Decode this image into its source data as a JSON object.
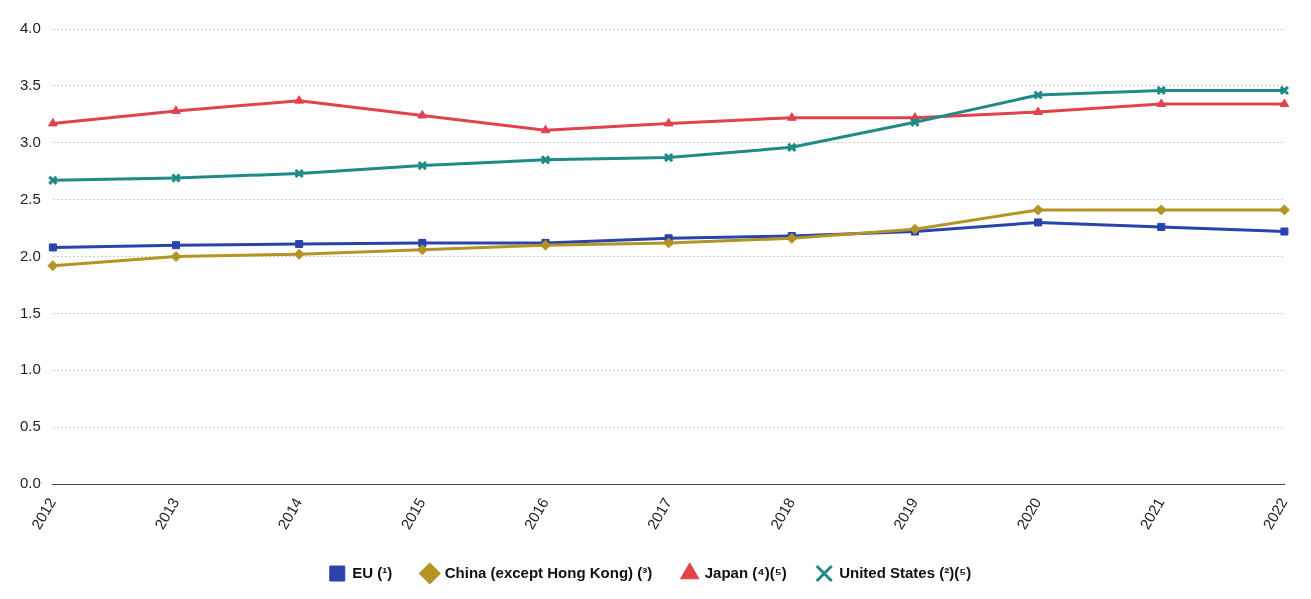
{
  "chart_data": {
    "type": "line",
    "categories": [
      "2012",
      "2013",
      "2014",
      "2015",
      "2016",
      "2017",
      "2018",
      "2019",
      "2020",
      "2021",
      "2022"
    ],
    "series": [
      {
        "name": "EU (¹)",
        "color": "#2a44ad",
        "marker": "square",
        "values": [
          2.08,
          2.1,
          2.11,
          2.12,
          2.12,
          2.16,
          2.18,
          2.22,
          2.3,
          2.26,
          2.22
        ]
      },
      {
        "name": "China (except Hong Kong) (³)",
        "color": "#b39424",
        "marker": "diamond",
        "values": [
          1.92,
          2.0,
          2.02,
          2.06,
          2.1,
          2.12,
          2.16,
          2.24,
          2.41,
          2.41,
          2.41
        ]
      },
      {
        "name": "Japan (⁴)(⁵)",
        "color": "#e0434b",
        "marker": "triangle",
        "values": [
          3.17,
          3.28,
          3.37,
          3.24,
          3.11,
          3.17,
          3.22,
          3.22,
          3.27,
          3.34,
          3.34
        ]
      },
      {
        "name": "United States (²)(⁵)",
        "color": "#1f8a86",
        "marker": "cross",
        "values": [
          2.67,
          2.69,
          2.73,
          2.8,
          2.85,
          2.87,
          2.96,
          3.18,
          3.42,
          3.46,
          3.46
        ]
      }
    ],
    "ylim": [
      0,
      4
    ],
    "yticks": [
      {
        "value": 0,
        "label": "0.0"
      },
      {
        "value": 0.5,
        "label": "0.5"
      },
      {
        "value": 1,
        "label": "1.0"
      },
      {
        "value": 1.5,
        "label": "1.5"
      },
      {
        "value": 2,
        "label": "2.0"
      },
      {
        "value": 2.5,
        "label": "2.5"
      },
      {
        "value": 3,
        "label": "3.0"
      },
      {
        "value": 3.5,
        "label": "3.5"
      },
      {
        "value": 4,
        "label": "4.0"
      }
    ],
    "grid": "y",
    "legend": "bottom",
    "line_style": "solid"
  }
}
